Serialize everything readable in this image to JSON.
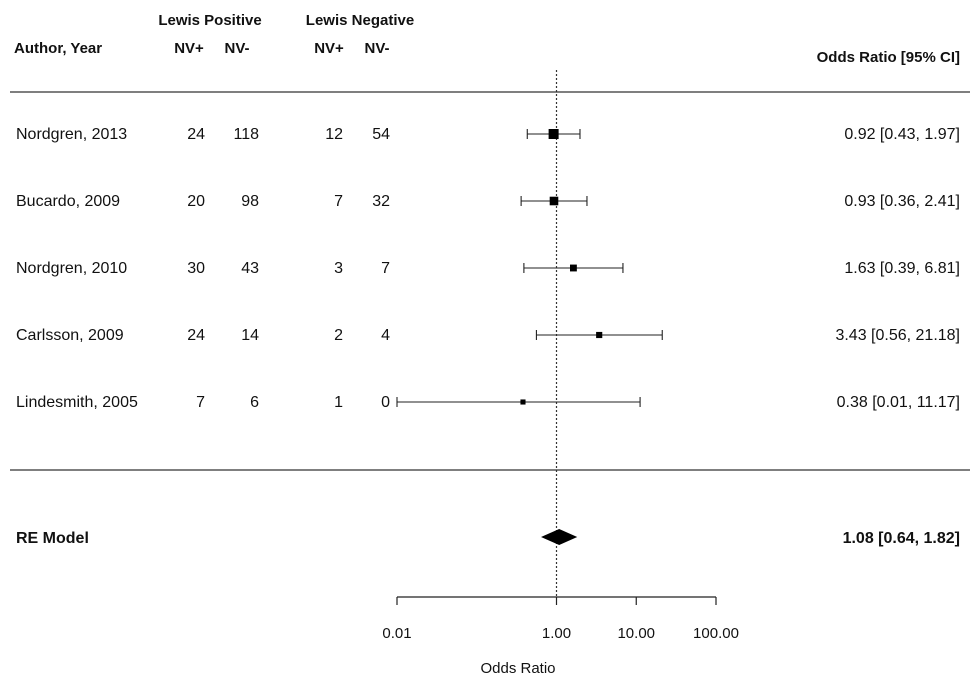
{
  "header": {
    "group_pos": "Lewis Positive",
    "group_neg": "Lewis Negative",
    "author_col": "Author, Year",
    "nv_plus": "NV+",
    "nv_minus": "NV-",
    "or_col": "Odds Ratio [95% CI]"
  },
  "chart_data": {
    "type": "forest",
    "x_scale": "log10",
    "xlabel": "Odds Ratio",
    "xticks": [
      {
        "value": 0.01,
        "label": "0.01"
      },
      {
        "value": 1,
        "label": "1.00"
      },
      {
        "value": 10,
        "label": "10.00"
      },
      {
        "value": 100,
        "label": "100.00"
      }
    ],
    "reference_line": 1,
    "studies": [
      {
        "label": "Nordgren, 2013",
        "pos_nv_plus": "24",
        "pos_nv_minus": "118",
        "neg_nv_plus": "12",
        "neg_nv_minus": "54",
        "or": 0.92,
        "lo": 0.43,
        "hi": 1.97,
        "or_text": "0.92 [0.43, 1.97]",
        "weight": 1.0
      },
      {
        "label": "Bucardo, 2009",
        "pos_nv_plus": "20",
        "pos_nv_minus": "98",
        "neg_nv_plus": "7",
        "neg_nv_minus": "32",
        "or": 0.93,
        "lo": 0.36,
        "hi": 2.41,
        "or_text": "0.93 [0.36, 2.41]",
        "weight": 0.8
      },
      {
        "label": "Nordgren, 2010",
        "pos_nv_plus": "30",
        "pos_nv_minus": "43",
        "neg_nv_plus": "3",
        "neg_nv_minus": "7",
        "or": 1.63,
        "lo": 0.39,
        "hi": 6.81,
        "or_text": "1.63 [0.39, 6.81]",
        "weight": 0.55
      },
      {
        "label": "Carlsson, 2009",
        "pos_nv_plus": "24",
        "pos_nv_minus": "14",
        "neg_nv_plus": "2",
        "neg_nv_minus": "4",
        "or": 3.43,
        "lo": 0.56,
        "hi": 21.18,
        "or_text": "3.43 [0.56, 21.18]",
        "weight": 0.45
      },
      {
        "label": "Lindesmith, 2005",
        "pos_nv_plus": "7",
        "pos_nv_minus": "6",
        "neg_nv_plus": "1",
        "neg_nv_minus": "0",
        "or": 0.38,
        "lo": 0.01,
        "hi": 11.17,
        "or_text": "0.38 [0.01, 11.17]",
        "weight": 0.3
      }
    ],
    "summary": {
      "label": "RE Model",
      "or": 1.08,
      "lo": 0.64,
      "hi": 1.82,
      "or_text": "1.08  [0.64, 1.82]"
    }
  }
}
